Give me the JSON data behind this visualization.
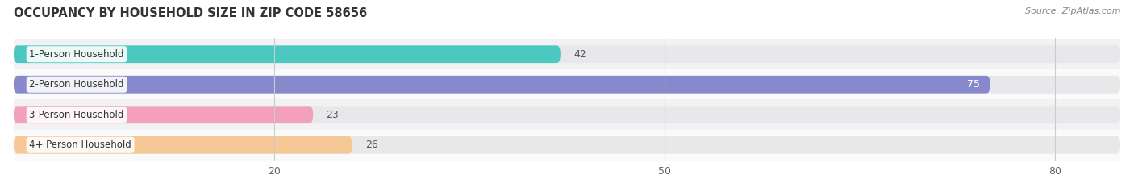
{
  "title": "OCCUPANCY BY HOUSEHOLD SIZE IN ZIP CODE 58656",
  "source": "Source: ZipAtlas.com",
  "categories": [
    "1-Person Household",
    "2-Person Household",
    "3-Person Household",
    "4+ Person Household"
  ],
  "values": [
    42,
    75,
    23,
    26
  ],
  "bar_colors": [
    "#4DC8C0",
    "#8888CC",
    "#F2A0BC",
    "#F5C896"
  ],
  "bar_bg_color": "#E8E8EB",
  "xlim_max": 85,
  "xticks": [
    20,
    50,
    80
  ],
  "figsize": [
    14.06,
    2.33
  ],
  "dpi": 100,
  "background_color": "#FFFFFF",
  "row_bg_even": "#F2F2F5",
  "row_bg_odd": "#FAFAFA"
}
